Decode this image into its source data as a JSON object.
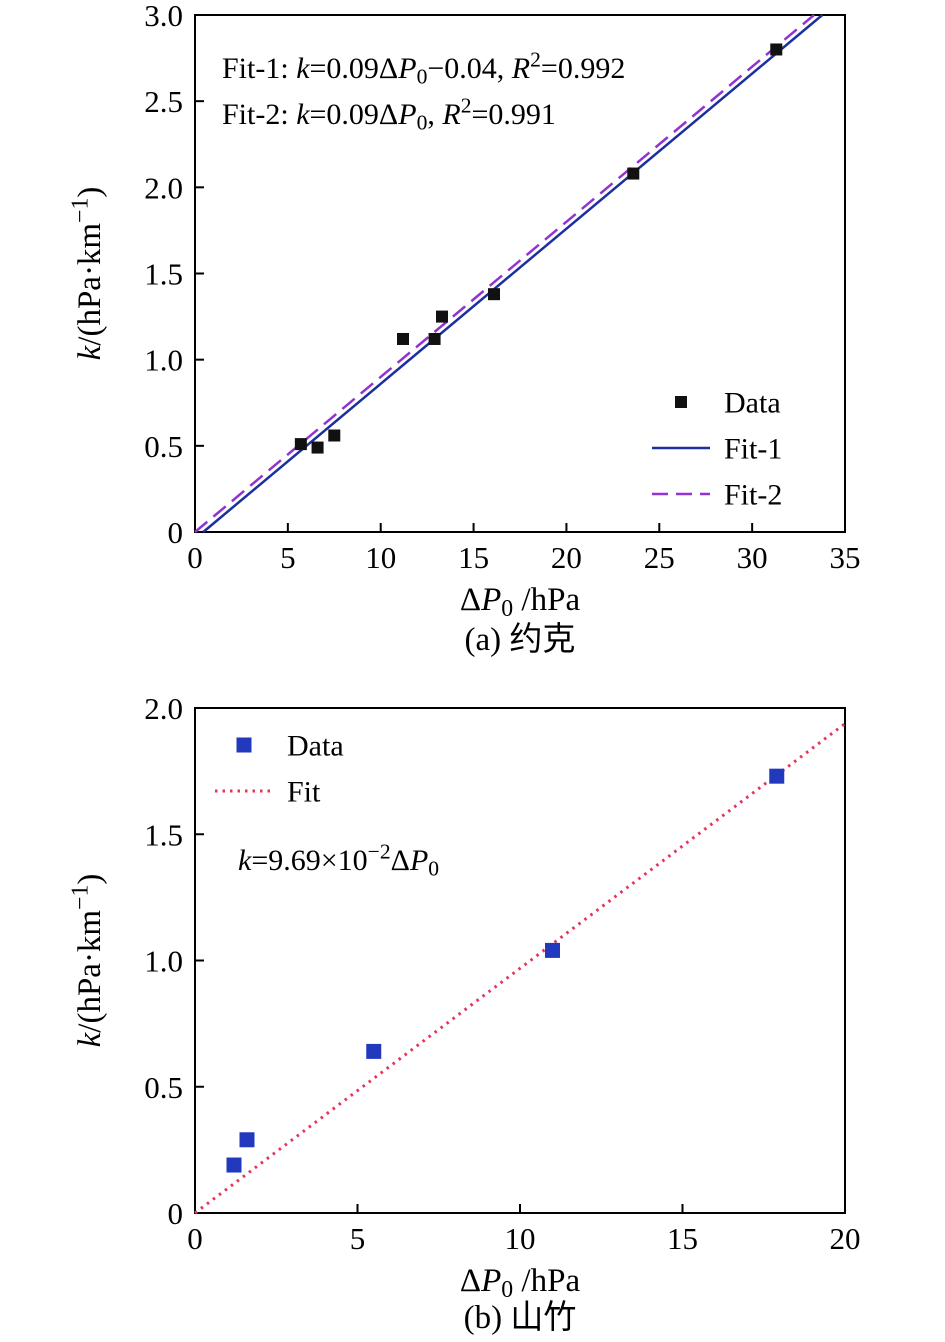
{
  "figure": {
    "background": "#ffffff"
  },
  "chart_data": [
    {
      "id": "a",
      "type": "scatter",
      "caption": "(a) 约克",
      "xlabel": "ΔP₀ /hPa",
      "ylabel": "k/(hPa·km⁻¹)",
      "xlabel_parts": [
        {
          "t": "Δ"
        },
        {
          "t": "P",
          "i": true
        },
        {
          "t": "0",
          "sub": true
        },
        {
          "t": " /hPa"
        }
      ],
      "ylabel_parts": [
        {
          "t": "k",
          "i": true
        },
        {
          "t": "/(hPa·km"
        },
        {
          "t": "−1",
          "sup": true
        },
        {
          "t": ")"
        }
      ],
      "xlim": [
        0,
        35
      ],
      "ylim": [
        0,
        3.0
      ],
      "grid": false,
      "xticks": {
        "values": [
          0,
          5,
          10,
          15,
          20,
          25,
          30,
          35
        ],
        "labels": [
          "0",
          "5",
          "10",
          "15",
          "20",
          "25",
          "30",
          "35"
        ]
      },
      "yticks": {
        "values": [
          0,
          0.5,
          1.0,
          1.5,
          2.0,
          2.5,
          3.0
        ],
        "labels": [
          "0",
          "0.5",
          "1.0",
          "1.5",
          "2.0",
          "2.5",
          "3.0"
        ]
      },
      "annotations_text": [
        "Fit-1: k=0.09ΔP₀−0.04, R²=0.992",
        "Fit-2: k=0.09ΔP₀, R²=0.991"
      ],
      "annotations": [
        {
          "parts": [
            {
              "t": "Fit-1: "
            },
            {
              "t": "k",
              "i": true
            },
            {
              "t": "=0.09Δ"
            },
            {
              "t": "P",
              "i": true
            },
            {
              "t": "0",
              "sub": true
            },
            {
              "t": "−0.04, "
            },
            {
              "t": "R",
              "i": true
            },
            {
              "t": "2",
              "sup": true
            },
            {
              "t": "=0.992"
            }
          ]
        },
        {
          "parts": [
            {
              "t": "Fit-2: "
            },
            {
              "t": "k",
              "i": true
            },
            {
              "t": "=0.09Δ"
            },
            {
              "t": "P",
              "i": true
            },
            {
              "t": "0",
              "sub": true
            },
            {
              "t": ", "
            },
            {
              "t": "R",
              "i": true
            },
            {
              "t": "2",
              "sup": true
            },
            {
              "t": "=0.991"
            }
          ]
        }
      ],
      "legend": {
        "position": "inside-right-bottom",
        "entries": [
          "Data",
          "Fit-1",
          "Fit-2"
        ]
      },
      "series": [
        {
          "name": "Data",
          "kind": "scatter",
          "marker": "square",
          "color": "#111111",
          "size": 12,
          "points": [
            [
              5.7,
              0.51
            ],
            [
              6.6,
              0.49
            ],
            [
              7.5,
              0.56
            ],
            [
              11.2,
              1.12
            ],
            [
              12.9,
              1.12
            ],
            [
              13.3,
              1.25
            ],
            [
              16.1,
              1.38
            ],
            [
              23.6,
              2.08
            ],
            [
              31.3,
              2.8
            ]
          ]
        },
        {
          "name": "Fit-1",
          "kind": "line",
          "dash": "solid",
          "color": "#1c2f9e",
          "width": 2.5,
          "slope": 0.09,
          "intercept": -0.04
        },
        {
          "name": "Fit-2",
          "kind": "line",
          "dash": "dashed",
          "color": "#9233d1",
          "width": 2.5,
          "slope": 0.09,
          "intercept": 0
        }
      ]
    },
    {
      "id": "b",
      "type": "scatter",
      "caption": "(b) 山竹",
      "xlabel": "ΔP₀ /hPa",
      "ylabel": "k/(hPa·km⁻¹)",
      "xlabel_parts": [
        {
          "t": "Δ"
        },
        {
          "t": "P",
          "i": true
        },
        {
          "t": "0",
          "sub": true
        },
        {
          "t": " /hPa"
        }
      ],
      "ylabel_parts": [
        {
          "t": "k",
          "i": true
        },
        {
          "t": "/(hPa·km"
        },
        {
          "t": "−1",
          "sup": true
        },
        {
          "t": ")"
        }
      ],
      "xlim": [
        0,
        20
      ],
      "ylim": [
        0,
        2.0
      ],
      "grid": false,
      "xticks": {
        "values": [
          0,
          5,
          10,
          15,
          20
        ],
        "labels": [
          "0",
          "5",
          "10",
          "15",
          "20"
        ]
      },
      "yticks": {
        "values": [
          0,
          0.5,
          1.0,
          1.5,
          2.0
        ],
        "labels": [
          "0",
          "0.5",
          "1.0",
          "1.5",
          "2.0"
        ]
      },
      "annotations_text": [
        "k=9.69×10⁻²ΔP₀"
      ],
      "annotations": [
        {
          "parts": [
            {
              "t": "k",
              "i": true
            },
            {
              "t": "=9.69×10"
            },
            {
              "t": "−2",
              "sup": true
            },
            {
              "t": "Δ"
            },
            {
              "t": "P",
              "i": true
            },
            {
              "t": "0",
              "sub": true
            }
          ]
        }
      ],
      "legend": {
        "position": "inside-left-top",
        "entries": [
          "Data",
          "Fit"
        ]
      },
      "series": [
        {
          "name": "Data",
          "kind": "scatter",
          "marker": "square",
          "color": "#2238bd",
          "size": 15,
          "points": [
            [
              1.2,
              0.19
            ],
            [
              1.6,
              0.29
            ],
            [
              5.5,
              0.64
            ],
            [
              11.0,
              1.04
            ],
            [
              17.9,
              1.73
            ]
          ]
        },
        {
          "name": "Fit",
          "kind": "line",
          "dash": "dotted",
          "color": "#e73359",
          "width": 3,
          "slope": 0.0969,
          "intercept": 0
        }
      ]
    }
  ]
}
